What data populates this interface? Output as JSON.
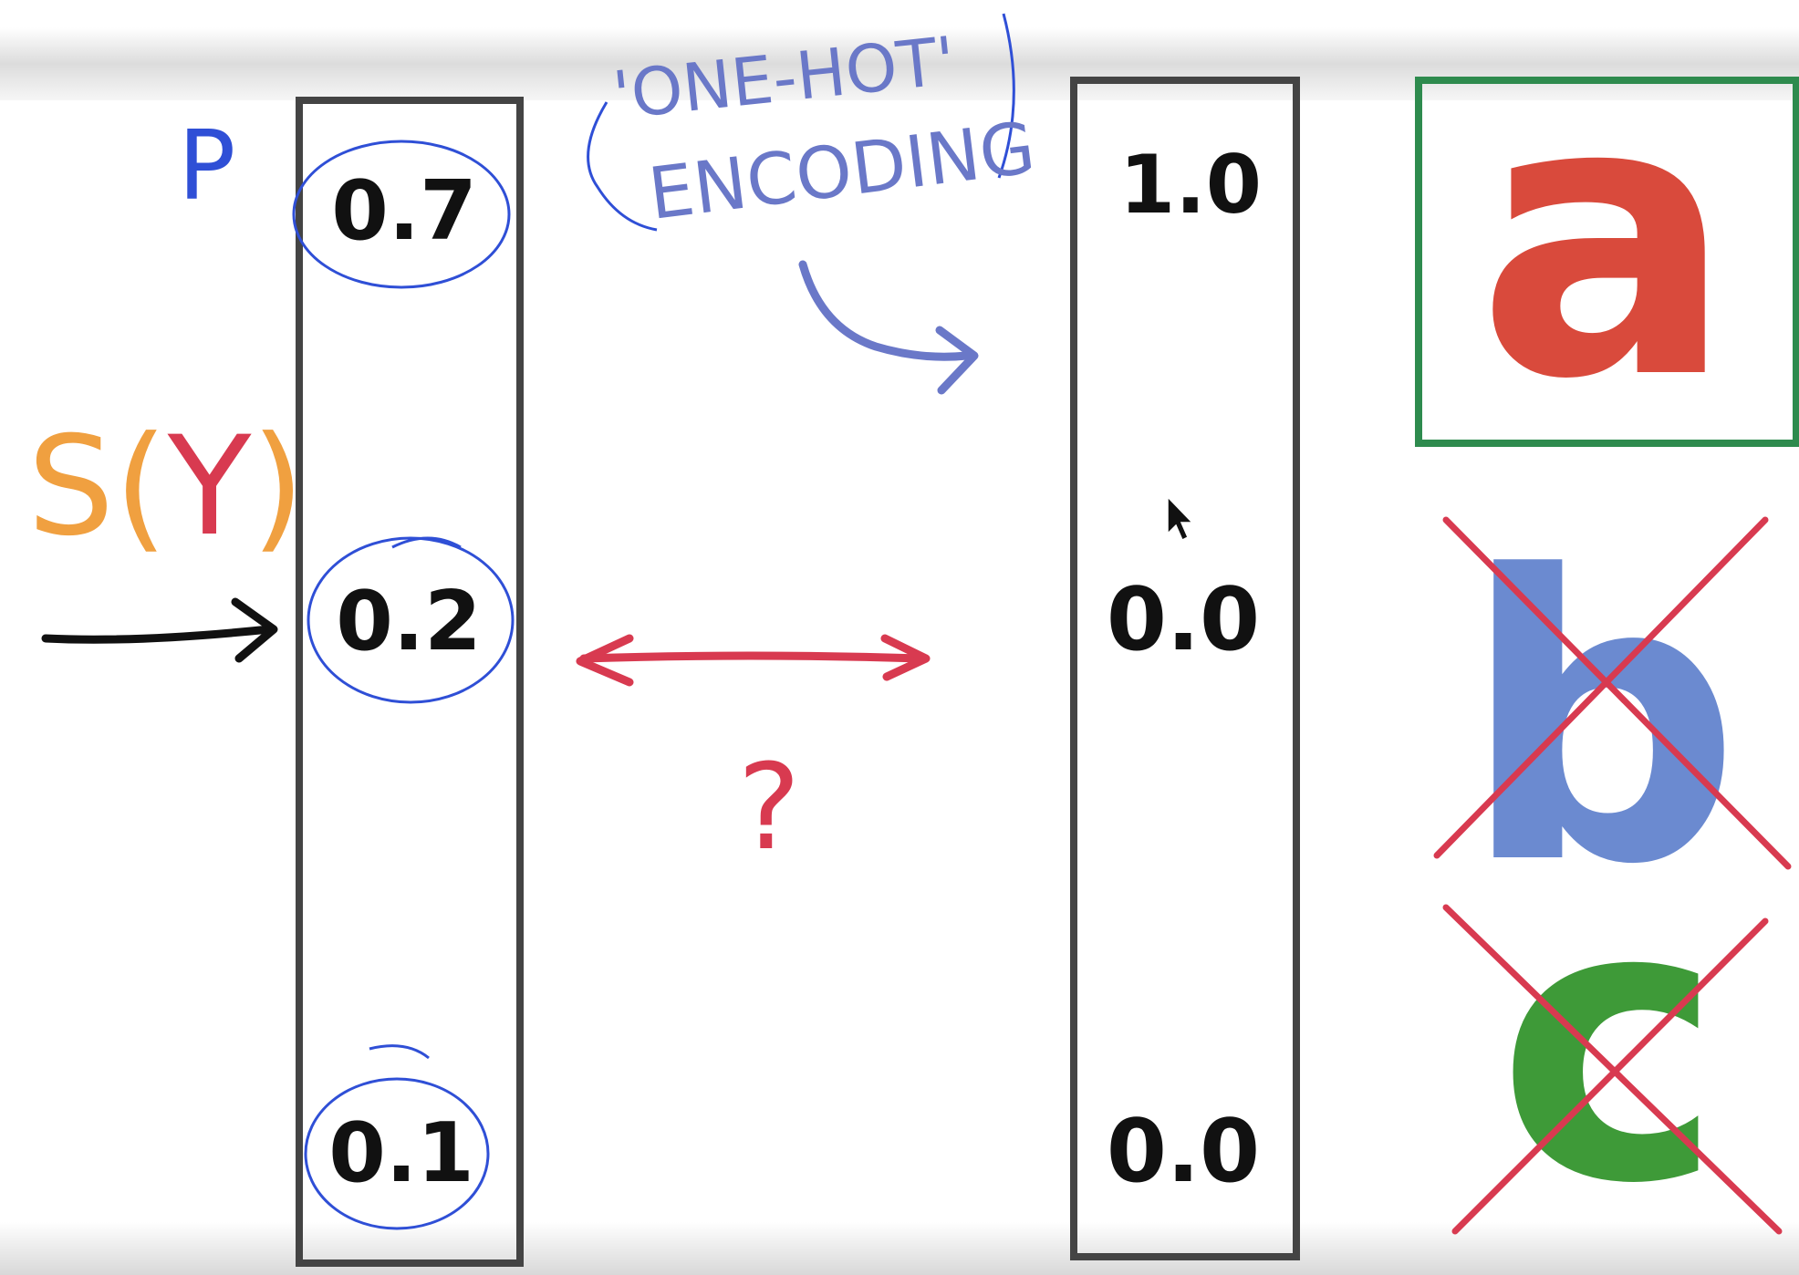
{
  "labels": {
    "p": "P",
    "score_s": "S",
    "score_open": "(",
    "score_y": "Y",
    "score_close": ")",
    "one_hot_line1": "'ONE-HOT'",
    "one_hot_line2": "ENCODING",
    "question": "?"
  },
  "probabilities": [
    "0.7",
    "0.2",
    "0.1"
  ],
  "one_hot": [
    "1.0",
    "0.0",
    "0.0"
  ],
  "letters": [
    "a",
    "b",
    "c"
  ],
  "colors": {
    "ink_blue": "#2f4fd6",
    "ink_black": "#111111",
    "ink_red": "#d83a50",
    "ink_orange": "#f0a040",
    "arrow_purple": "#6a78c8",
    "letter_a": "#d94a3c",
    "letter_b": "#6b8ad0",
    "letter_c": "#3e9a38",
    "frame_green": "#2e8b4e",
    "cross_red": "#d83a50"
  }
}
